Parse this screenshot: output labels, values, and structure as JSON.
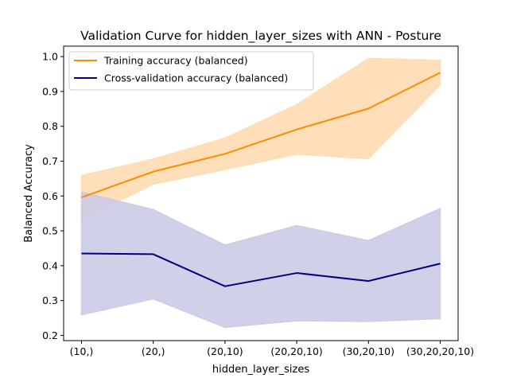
{
  "chart_data": {
    "type": "line",
    "title": "Validation Curve for hidden_layer_sizes with ANN - Posture",
    "xlabel": "hidden_layer_sizes",
    "ylabel": "Balanced Accuracy",
    "categories": [
      "(10,)",
      "(20,)",
      "(20,10)",
      "(20,20,10)",
      "(30,20,10)",
      "(30,20,20,10)"
    ],
    "ylim": [
      0.185,
      1.03
    ],
    "yticks": [
      0.2,
      0.3,
      0.4,
      0.5,
      0.6,
      0.7,
      0.8,
      0.9,
      1.0
    ],
    "ytick_labels": [
      "0.2",
      "0.3",
      "0.4",
      "0.5",
      "0.6",
      "0.7",
      "0.8",
      "0.9",
      "1.0"
    ],
    "grid": false,
    "legend_position": "top-left",
    "series": [
      {
        "name": "Training accuracy (balanced)",
        "color": "#ff8c00",
        "band_color": "#ffdcb3",
        "values": [
          0.596,
          0.67,
          0.721,
          0.791,
          0.851,
          0.954
        ],
        "upper": [
          0.659,
          0.706,
          0.766,
          0.862,
          0.995,
          0.989
        ],
        "lower": [
          0.533,
          0.634,
          0.676,
          0.72,
          0.707,
          0.919
        ]
      },
      {
        "name": "Cross-validation accuracy (balanced)",
        "color": "#000080",
        "band_color": "#cbcbe6",
        "values": [
          0.435,
          0.433,
          0.341,
          0.379,
          0.356,
          0.406
        ],
        "upper": [
          0.611,
          0.561,
          0.459,
          0.515,
          0.472,
          0.564
        ],
        "lower": [
          0.259,
          0.305,
          0.223,
          0.242,
          0.24,
          0.248
        ]
      }
    ]
  }
}
